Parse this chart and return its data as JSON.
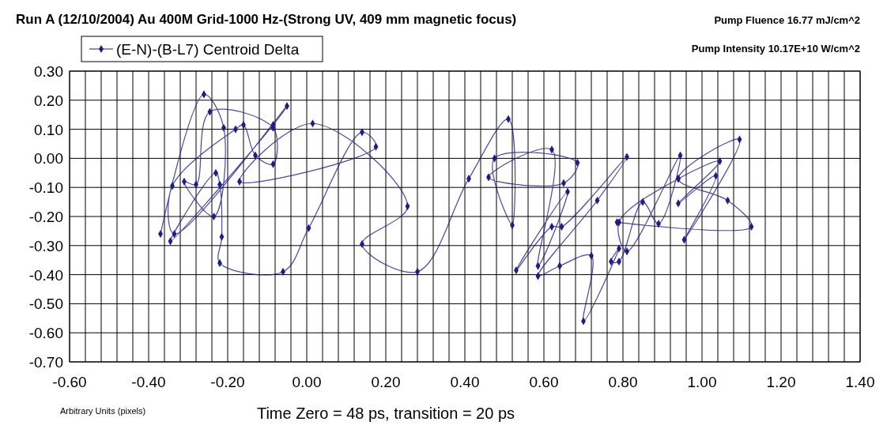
{
  "chart_data": {
    "type": "line",
    "title": "Run A (12/10/2004) Au 400M Grid-1000 Hz-(Strong UV, 409 mm magnetic focus)",
    "xlabel": "Arbitrary Units (pixels)",
    "annotations": [
      "Pump Fluence 16.77 mJ/cm^2",
      "Pump Intensity 10.17E+10 W/cm^2",
      "Time Zero = 48 ps, transition = 20 ps"
    ],
    "series": [
      {
        "name": "(E-N)-(B-L7) Centroid Delta",
        "color": "#1c1c8a",
        "x": [
          -0.37,
          -0.26,
          -0.21,
          -0.235,
          -0.31,
          -0.28,
          -0.245,
          -0.085,
          -0.085,
          -0.13,
          -0.16,
          -0.18,
          -0.34,
          -0.335,
          -0.05,
          -0.085,
          -0.345,
          -0.23,
          -0.22,
          -0.215,
          -0.22,
          -0.06,
          0.005,
          0.14,
          0.175,
          -0.17,
          0.015,
          0.255,
          0.14,
          0.28,
          0.41,
          0.51,
          0.52,
          0.475,
          0.685,
          0.65,
          0.46,
          0.62,
          0.585,
          0.66,
          0.53,
          0.62,
          0.645,
          0.81,
          0.735,
          0.585,
          0.64,
          0.72,
          0.7,
          0.79,
          0.77,
          0.79,
          0.85,
          0.89,
          0.945,
          0.81,
          0.79,
          0.94,
          1.045,
          0.94,
          1.035,
          0.955,
          1.095,
          0.94,
          1.065,
          1.125,
          0.785
        ],
        "values": [
          -0.26,
          0.22,
          0.105,
          -0.2,
          -0.08,
          -0.09,
          0.16,
          0.105,
          -0.02,
          0.01,
          0.115,
          0.1,
          -0.095,
          -0.26,
          0.18,
          0.115,
          -0.285,
          -0.05,
          -0.09,
          -0.27,
          -0.36,
          -0.39,
          -0.24,
          0.09,
          0.04,
          -0.08,
          0.12,
          -0.165,
          -0.295,
          -0.39,
          -0.07,
          0.135,
          -0.23,
          0.0,
          -0.015,
          -0.085,
          -0.065,
          0.03,
          -0.37,
          -0.115,
          -0.385,
          -0.235,
          -0.235,
          0.005,
          -0.145,
          -0.405,
          -0.37,
          -0.335,
          -0.56,
          -0.31,
          -0.355,
          -0.355,
          -0.15,
          -0.225,
          0.01,
          -0.32,
          -0.22,
          -0.07,
          -0.01,
          -0.155,
          -0.06,
          -0.28,
          0.065,
          -0.07,
          -0.145,
          -0.235,
          -0.22
        ]
      }
    ],
    "xlim": [
      -0.6,
      1.4
    ],
    "xticks": [
      {
        "value": -0.6,
        "label": "-0.60"
      },
      {
        "value": -0.4,
        "label": "-0.40"
      },
      {
        "value": -0.2,
        "label": "-0.20"
      },
      {
        "value": 0,
        "label": "0.00"
      },
      {
        "value": 0.2,
        "label": "0.20"
      },
      {
        "value": 0.4,
        "label": "0.40"
      },
      {
        "value": 0.6,
        "label": "0.60"
      },
      {
        "value": 0.8,
        "label": "0.80"
      },
      {
        "value": 1.0,
        "label": "1.00"
      },
      {
        "value": 1.2,
        "label": "1.20"
      },
      {
        "value": 1.4,
        "label": "1.40"
      }
    ],
    "ylim": [
      -0.7,
      0.3
    ],
    "yticks": [
      {
        "value": 0.3,
        "label": "0.30"
      },
      {
        "value": 0.2,
        "label": "0.20"
      },
      {
        "value": 0.1,
        "label": "0.10"
      },
      {
        "value": 0,
        "label": "0.00"
      },
      {
        "value": -0.1,
        "label": "-0.10"
      },
      {
        "value": -0.2,
        "label": "-0.20"
      },
      {
        "value": -0.3,
        "label": "-0.30"
      },
      {
        "value": -0.4,
        "label": "-0.40"
      },
      {
        "value": -0.5,
        "label": "-0.50"
      },
      {
        "value": -0.6,
        "label": "-0.60"
      },
      {
        "value": -0.7,
        "label": "-0.70"
      }
    ],
    "grid": true,
    "legend": "top left",
    "marker": "diamond",
    "line_style": "solid"
  }
}
